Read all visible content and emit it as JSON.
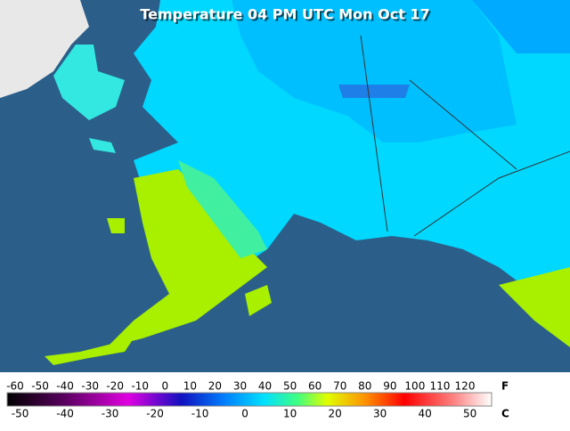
{
  "title": "Temperature 04 PM UTC Mon Oct 17",
  "legend": {
    "fahrenheit_unit": "F",
    "fahrenheit_ticks": [
      -60,
      -50,
      -40,
      -30,
      -20,
      -10,
      0,
      10,
      20,
      30,
      40,
      50,
      60,
      70,
      80,
      90,
      100,
      110,
      120
    ],
    "celsius_unit": "C",
    "celsius_ticks": [
      -50,
      -40,
      -30,
      -20,
      -10,
      0,
      10,
      20,
      30,
      40,
      50
    ]
  }
}
